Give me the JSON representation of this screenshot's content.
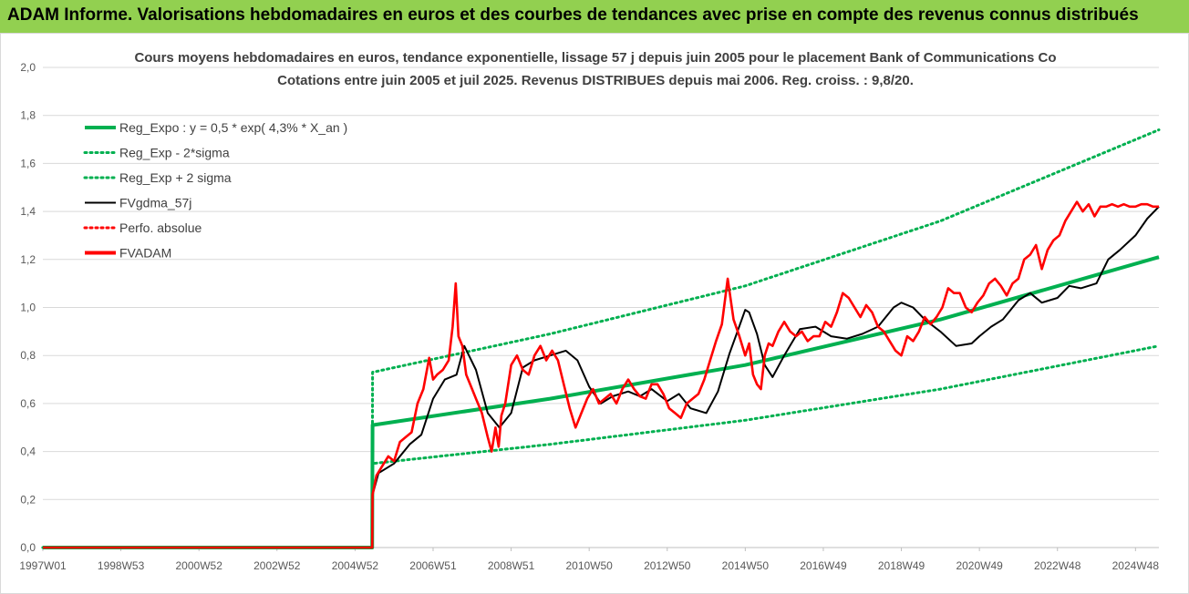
{
  "header": {
    "banner_title": "ADAM Informe. Valorisations hebdomadaires en euros et des courbes de tendances avec prise en compte des revenus connus distribués"
  },
  "colors": {
    "banner": "#92d050",
    "trend": "#00b050",
    "price": "#ff0000",
    "average": "#000000",
    "grid": "#d9d9d9"
  },
  "chart_data": {
    "type": "line",
    "title": "Cours moyens hebdomadaires en euros, tendance exponentielle, lissage 57 j depuis juin 2005 pour le placement Bank of Communications Co",
    "subtitle": "Cotations entre juin 2005 et juil 2025.  Revenus DISTRIBUES depuis mai 2006.  Reg. croiss. : 9,8/20.",
    "xlabel": "",
    "ylabel": "",
    "ylim": [
      0,
      2.0
    ],
    "xlim": [
      1997.0,
      2025.6
    ],
    "yticks": [
      "0,0",
      "0,2",
      "0,4",
      "0,6",
      "0,8",
      "1,0",
      "1,2",
      "1,4",
      "1,6",
      "1,8",
      "2,0"
    ],
    "xticks": [
      {
        "label": "1997W01",
        "x": 1997.0
      },
      {
        "label": "1998W53",
        "x": 1999.0
      },
      {
        "label": "2000W52",
        "x": 2001.0
      },
      {
        "label": "2002W52",
        "x": 2003.0
      },
      {
        "label": "2004W52",
        "x": 2005.0
      },
      {
        "label": "2006W51",
        "x": 2007.0
      },
      {
        "label": "2008W51",
        "x": 2009.0
      },
      {
        "label": "2010W50",
        "x": 2011.0
      },
      {
        "label": "2012W50",
        "x": 2013.0
      },
      {
        "label": "2014W50",
        "x": 2015.0
      },
      {
        "label": "2016W49",
        "x": 2017.0
      },
      {
        "label": "2018W49",
        "x": 2019.0
      },
      {
        "label": "2020W49",
        "x": 2021.0
      },
      {
        "label": "2022W48",
        "x": 2023.0
      },
      {
        "label": "2024W48",
        "x": 2025.0
      }
    ],
    "grid": "horizontal",
    "legend_position": "top-left",
    "series": [
      {
        "name": "Reg_Expo : y = 0,5 * exp( 4,3% *  X_an )",
        "style": "solid-thick",
        "color": "#00b050",
        "x": [
          1997.0,
          2005.44,
          2005.45,
          2010,
          2015,
          2020,
          2025.6
        ],
        "y": [
          0,
          0,
          0.51,
          0.62,
          0.76,
          0.95,
          1.21
        ]
      },
      {
        "name": "Reg_Exp - 2*sigma",
        "style": "dotted",
        "color": "#00b050",
        "x": [
          1997.0,
          2005.44,
          2005.45,
          2010,
          2015,
          2020,
          2025.6
        ],
        "y": [
          0,
          0,
          0.35,
          0.43,
          0.53,
          0.66,
          0.84
        ]
      },
      {
        "name": "Reg_Exp + 2 sigma",
        "style": "dotted",
        "color": "#00b050",
        "x": [
          1997.0,
          2005.44,
          2005.45,
          2010,
          2015,
          2020,
          2025.6
        ],
        "y": [
          0,
          0,
          0.73,
          0.89,
          1.09,
          1.36,
          1.74
        ]
      },
      {
        "name": "FVgdma_57j",
        "style": "solid-thin",
        "color": "#000000",
        "x": [
          1997.0,
          2005.44,
          2005.45,
          2005.6,
          2006.0,
          2006.4,
          2006.7,
          2007.0,
          2007.3,
          2007.6,
          2007.8,
          2008.1,
          2008.4,
          2008.7,
          2009.0,
          2009.3,
          2009.6,
          2010.0,
          2010.4,
          2010.7,
          2011.0,
          2011.3,
          2011.6,
          2012.0,
          2012.3,
          2012.6,
          2013.0,
          2013.3,
          2013.6,
          2014.0,
          2014.3,
          2014.6,
          2014.8,
          2015.0,
          2015.1,
          2015.3,
          2015.5,
          2015.7,
          2016.0,
          2016.4,
          2016.8,
          2017.2,
          2017.6,
          2018.0,
          2018.4,
          2018.8,
          2019.0,
          2019.3,
          2019.6,
          2020.0,
          2020.4,
          2020.8,
          2021.0,
          2021.3,
          2021.6,
          2022.0,
          2022.3,
          2022.6,
          2023.0,
          2023.3,
          2023.6,
          2024.0,
          2024.3,
          2024.6,
          2025.0,
          2025.3,
          2025.6
        ],
        "y": [
          0,
          0,
          0.22,
          0.31,
          0.35,
          0.43,
          0.47,
          0.62,
          0.7,
          0.72,
          0.84,
          0.74,
          0.56,
          0.5,
          0.56,
          0.75,
          0.78,
          0.8,
          0.82,
          0.78,
          0.67,
          0.6,
          0.63,
          0.65,
          0.63,
          0.66,
          0.61,
          0.64,
          0.58,
          0.56,
          0.65,
          0.81,
          0.9,
          0.99,
          0.98,
          0.89,
          0.76,
          0.71,
          0.8,
          0.91,
          0.92,
          0.88,
          0.87,
          0.89,
          0.92,
          1.0,
          1.02,
          1.0,
          0.95,
          0.9,
          0.84,
          0.85,
          0.88,
          0.92,
          0.95,
          1.03,
          1.06,
          1.02,
          1.04,
          1.09,
          1.08,
          1.1,
          1.2,
          1.24,
          1.3,
          1.37,
          1.42
        ]
      },
      {
        "name": "Perfo. absolue",
        "style": "dotted",
        "color": "#ff0000",
        "x": [],
        "y": []
      },
      {
        "name": "FVADAM",
        "style": "solid-thick",
        "color": "#ff0000",
        "x": [
          1997.0,
          2005.44,
          2005.45,
          2005.55,
          2005.7,
          2005.85,
          2006.0,
          2006.15,
          2006.3,
          2006.45,
          2006.6,
          2006.75,
          2006.9,
          2007.0,
          2007.1,
          2007.25,
          2007.4,
          2007.5,
          2007.58,
          2007.65,
          2007.75,
          2007.85,
          2007.95,
          2008.1,
          2008.25,
          2008.4,
          2008.5,
          2008.6,
          2008.68,
          2008.75,
          2008.85,
          2009.0,
          2009.15,
          2009.3,
          2009.45,
          2009.6,
          2009.75,
          2009.9,
          2010.05,
          2010.2,
          2010.35,
          2010.5,
          2010.65,
          2010.8,
          2010.95,
          2011.1,
          2011.25,
          2011.4,
          2011.55,
          2011.7,
          2011.85,
          2012.0,
          2012.15,
          2012.3,
          2012.45,
          2012.6,
          2012.75,
          2012.9,
          2013.05,
          2013.2,
          2013.35,
          2013.5,
          2013.65,
          2013.8,
          2013.95,
          2014.1,
          2014.25,
          2014.4,
          2014.55,
          2014.7,
          2014.85,
          2015.0,
          2015.1,
          2015.2,
          2015.3,
          2015.4,
          2015.5,
          2015.6,
          2015.7,
          2015.85,
          2016.0,
          2016.15,
          2016.3,
          2016.45,
          2016.6,
          2016.75,
          2016.9,
          2017.05,
          2017.2,
          2017.35,
          2017.5,
          2017.65,
          2017.8,
          2017.95,
          2018.1,
          2018.25,
          2018.4,
          2018.55,
          2018.7,
          2018.85,
          2019.0,
          2019.15,
          2019.3,
          2019.45,
          2019.6,
          2019.75,
          2019.9,
          2020.05,
          2020.2,
          2020.35,
          2020.5,
          2020.65,
          2020.8,
          2020.95,
          2021.1,
          2021.25,
          2021.4,
          2021.55,
          2021.7,
          2021.85,
          2022.0,
          2022.15,
          2022.3,
          2022.45,
          2022.6,
          2022.75,
          2022.9,
          2023.05,
          2023.2,
          2023.35,
          2023.5,
          2023.65,
          2023.8,
          2023.95,
          2024.1,
          2024.25,
          2024.4,
          2024.55,
          2024.7,
          2024.85,
          2025.0,
          2025.15,
          2025.3,
          2025.45,
          2025.6
        ],
        "y": [
          0,
          0,
          0.22,
          0.3,
          0.34,
          0.38,
          0.36,
          0.44,
          0.46,
          0.48,
          0.6,
          0.66,
          0.79,
          0.7,
          0.72,
          0.74,
          0.78,
          0.92,
          1.1,
          0.88,
          0.84,
          0.72,
          0.68,
          0.62,
          0.56,
          0.46,
          0.4,
          0.5,
          0.42,
          0.55,
          0.6,
          0.76,
          0.8,
          0.74,
          0.72,
          0.8,
          0.84,
          0.78,
          0.82,
          0.78,
          0.68,
          0.58,
          0.5,
          0.56,
          0.62,
          0.66,
          0.6,
          0.62,
          0.64,
          0.6,
          0.66,
          0.7,
          0.66,
          0.63,
          0.62,
          0.68,
          0.68,
          0.64,
          0.58,
          0.56,
          0.54,
          0.6,
          0.62,
          0.64,
          0.7,
          0.78,
          0.86,
          0.93,
          1.12,
          0.95,
          0.88,
          0.8,
          0.85,
          0.72,
          0.68,
          0.66,
          0.8,
          0.85,
          0.84,
          0.9,
          0.94,
          0.9,
          0.88,
          0.9,
          0.86,
          0.88,
          0.88,
          0.94,
          0.92,
          0.98,
          1.06,
          1.04,
          1.0,
          0.96,
          1.01,
          0.98,
          0.92,
          0.9,
          0.86,
          0.82,
          0.8,
          0.88,
          0.86,
          0.9,
          0.96,
          0.93,
          0.96,
          1.0,
          1.08,
          1.06,
          1.06,
          1.0,
          0.98,
          1.02,
          1.05,
          1.1,
          1.12,
          1.09,
          1.05,
          1.1,
          1.12,
          1.2,
          1.22,
          1.26,
          1.16,
          1.24,
          1.28,
          1.3,
          1.36,
          1.4,
          1.44,
          1.4,
          1.43,
          1.38,
          1.42,
          1.42,
          1.43,
          1.42,
          1.43,
          1.42,
          1.42,
          1.43,
          1.43,
          1.42,
          1.42
        ]
      }
    ]
  }
}
